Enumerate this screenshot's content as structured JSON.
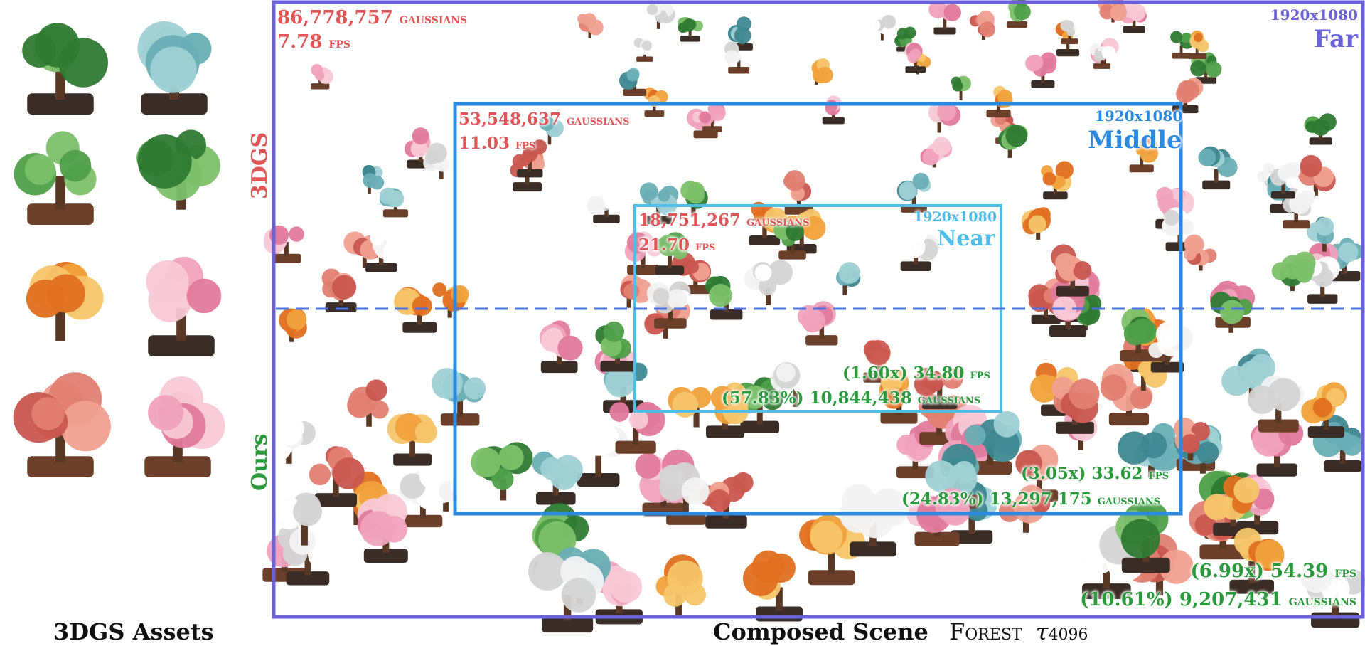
{
  "far": {
    "baseline_gaussians": "86,778,757",
    "baseline_fps": "7.78",
    "resolution": "1920x1080",
    "label": "Far",
    "ours_speedup": "(6.99x)",
    "ours_fps": "54.39",
    "ours_ratio": "(10.61%)",
    "ours_gaussians": "9,207,431"
  },
  "middle": {
    "baseline_gaussians": "53,548,637",
    "baseline_fps": "11.03",
    "resolution": "1920x1080",
    "label": "Middle",
    "ours_speedup": "(3.05x)",
    "ours_fps": "33.62",
    "ours_ratio": "(24.83%)",
    "ours_gaussians": "13,297,175"
  },
  "near": {
    "baseline_gaussians": "18,751,267",
    "baseline_fps": "21.70",
    "resolution": "1920x1080",
    "label": "Near",
    "ours_speedup": "(1.60x)",
    "ours_fps": "34.80",
    "ours_ratio": "(57.83%)",
    "ours_gaussians": "10,844,438"
  },
  "units": {
    "gaussians": "gaussians",
    "fps": "fps"
  },
  "side_labels": {
    "baseline": "3DGS",
    "ours": "Ours"
  },
  "captions": {
    "assets": "3DGS Assets",
    "scene": "Composed Scene",
    "scene_name": "Forest",
    "tau": "τ",
    "tau_value": "4096"
  },
  "colors": {
    "far_frame": "#6c62d8",
    "middle_frame": "#2b8ae0",
    "near_frame": "#50bde8",
    "baseline_text": "#e05555",
    "ours_text": "#2a9a3c"
  }
}
